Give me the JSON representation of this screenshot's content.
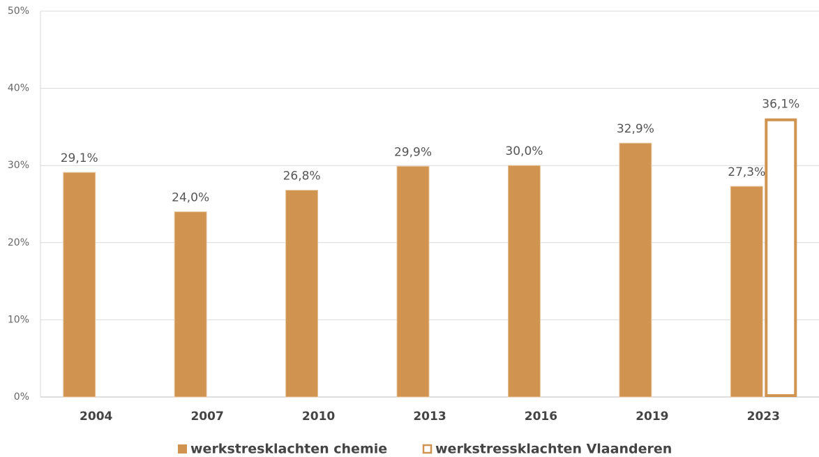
{
  "chart_data": {
    "type": "bar",
    "categories": [
      "2004",
      "2007",
      "2010",
      "2013",
      "2016",
      "2019",
      "2023"
    ],
    "series": [
      {
        "name": "werkstresklachten chemie",
        "color": "#d09450",
        "fill": "#d09450",
        "values": [
          29.1,
          24.0,
          26.8,
          29.9,
          30.0,
          32.9,
          27.3
        ],
        "value_labels": [
          "29,1%",
          "24,0%",
          "26,8%",
          "29,9%",
          "30,0%",
          "32,9%",
          "27,3%"
        ]
      },
      {
        "name": "werkstressklachten Vlaanderen",
        "color": "#d09450",
        "fill": "#ffffff",
        "values": [
          null,
          null,
          null,
          null,
          null,
          null,
          36.1
        ],
        "value_labels": [
          null,
          null,
          null,
          null,
          null,
          null,
          "36,1%"
        ]
      }
    ],
    "ylim": [
      0,
      50
    ],
    "yticks": [
      {
        "value": 0,
        "label": "0%"
      },
      {
        "value": 10,
        "label": "10%"
      },
      {
        "value": 20,
        "label": "20%"
      },
      {
        "value": 30,
        "label": "30%"
      },
      {
        "value": 40,
        "label": "40%"
      },
      {
        "value": 50,
        "label": "50%"
      }
    ],
    "grid": true,
    "legend": "bottom"
  }
}
